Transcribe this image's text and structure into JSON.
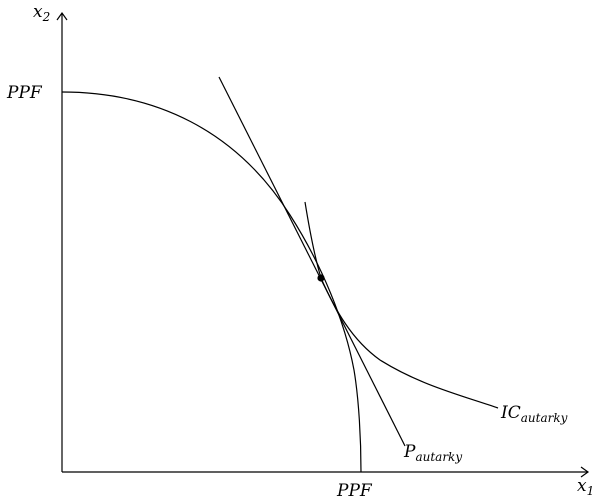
{
  "axes": {
    "x_label": {
      "base": "x",
      "sub": "1"
    },
    "y_label": {
      "base": "x",
      "sub": "2"
    }
  },
  "ppf": {
    "x_intercept_label": "PPF",
    "y_intercept_label": "PPF"
  },
  "indifference_curve": {
    "base": "IC",
    "sub": "autarky"
  },
  "price_line": {
    "base": "P",
    "sub": "autarky"
  },
  "colors": {
    "ink": "#000000",
    "background": "#ffffff"
  }
}
